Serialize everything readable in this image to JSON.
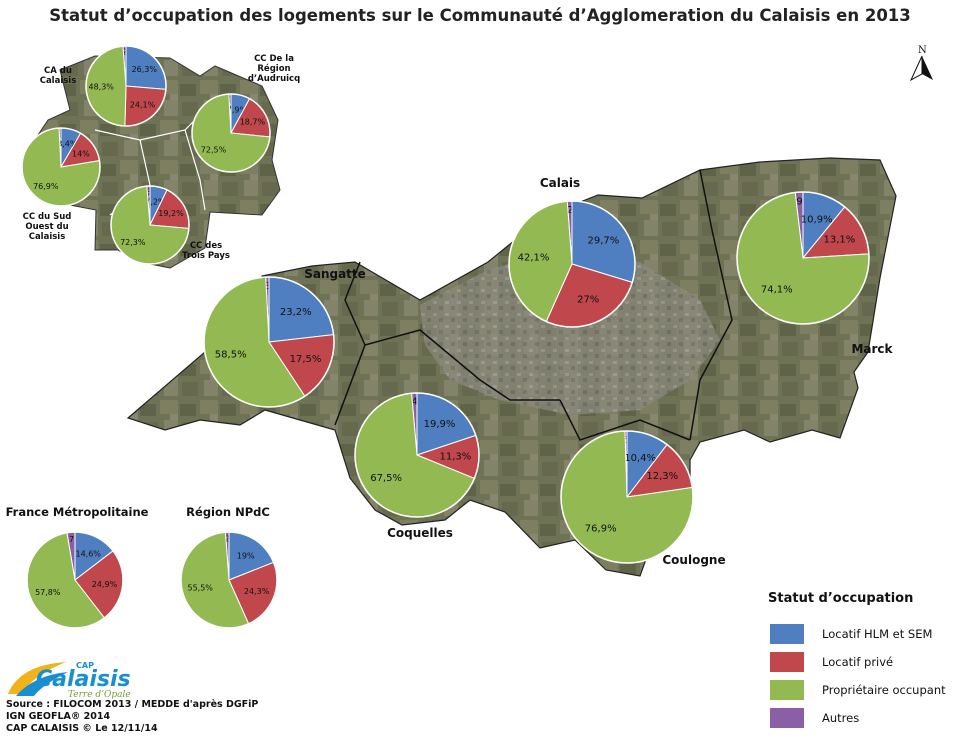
{
  "title": "Statut d’occupation des logements sur le Communauté d’Agglomeration du Calaisis en 2013",
  "colors": {
    "hlm": "#4f7fc0",
    "prive": "#c0474b",
    "proprietaire": "#93ba52",
    "autres": "#8b5fa6"
  },
  "legend": {
    "title": "Statut d’occupation",
    "items": [
      {
        "key": "hlm",
        "label": "Locatif HLM et SEM"
      },
      {
        "key": "prive",
        "label": "Locatif privé"
      },
      {
        "key": "proprietaire",
        "label": "Propriétaire occupant"
      },
      {
        "key": "autres",
        "label": "Autres"
      }
    ]
  },
  "north_label": "N",
  "logo": {
    "text": "Calaisis",
    "prefix": "CAP",
    "tagline": "Terre d’Opale"
  },
  "source_lines": [
    "Source : FILOCOM 2013 / MEDDE d'après DGFiP",
    "IGN GEOFLA® 2014",
    "CAP CALAISIS © Le 12/11/14"
  ],
  "chart_data": [
    {
      "type": "pie",
      "id": "calais",
      "name": "Calais",
      "slices": [
        {
          "key": "hlm",
          "value": 29.7,
          "label": "29,7%"
        },
        {
          "key": "prive",
          "value": 27.0,
          "label": "27%"
        },
        {
          "key": "proprietaire",
          "value": 42.1,
          "label": "42,1%"
        },
        {
          "key": "autres",
          "value": 1.2,
          "label": "1,2%"
        }
      ]
    },
    {
      "type": "pie",
      "id": "marck",
      "name": "Marck",
      "slices": [
        {
          "key": "hlm",
          "value": 10.9,
          "label": "10,9%"
        },
        {
          "key": "prive",
          "value": 13.1,
          "label": "13,1%"
        },
        {
          "key": "proprietaire",
          "value": 74.1,
          "label": "74,1%"
        },
        {
          "key": "autres",
          "value": 1.9,
          "label": "1,9%"
        }
      ]
    },
    {
      "type": "pie",
      "id": "sangatte",
      "name": "Sangatte",
      "slices": [
        {
          "key": "hlm",
          "value": 23.2,
          "label": "23,2%"
        },
        {
          "key": "prive",
          "value": 17.5,
          "label": "17,5%"
        },
        {
          "key": "proprietaire",
          "value": 58.5,
          "label": "58,5%"
        },
        {
          "key": "autres",
          "value": 0.8,
          "label": "0,8%"
        }
      ]
    },
    {
      "type": "pie",
      "id": "coquelles",
      "name": "Coquelles",
      "slices": [
        {
          "key": "hlm",
          "value": 19.9,
          "label": "19,9%"
        },
        {
          "key": "prive",
          "value": 11.3,
          "label": "11,3%"
        },
        {
          "key": "proprietaire",
          "value": 67.5,
          "label": "67,5%"
        },
        {
          "key": "autres",
          "value": 1.4,
          "label": "1,4%"
        }
      ]
    },
    {
      "type": "pie",
      "id": "coulogne",
      "name": "Coulogne",
      "slices": [
        {
          "key": "hlm",
          "value": 10.4,
          "label": "10,4%"
        },
        {
          "key": "prive",
          "value": 12.3,
          "label": "12,3%"
        },
        {
          "key": "proprietaire",
          "value": 76.9,
          "label": "76,9%"
        },
        {
          "key": "autres",
          "value": 0.5,
          "label": "0,5%"
        }
      ]
    },
    {
      "type": "pie",
      "id": "ca-calaisis",
      "name": "CA du Calaisis",
      "slices": [
        {
          "key": "hlm",
          "value": 26.3,
          "label": "26,3%"
        },
        {
          "key": "prive",
          "value": 24.1,
          "label": "24,1%"
        },
        {
          "key": "proprietaire",
          "value": 48.3,
          "label": "48,3%"
        },
        {
          "key": "autres",
          "value": 1.2,
          "label": "1,2%"
        }
      ]
    },
    {
      "type": "pie",
      "id": "cc-audruicq",
      "name": "CC De la Région d’Audruicq",
      "slices": [
        {
          "key": "hlm",
          "value": 7.9,
          "label": "7,9%"
        },
        {
          "key": "prive",
          "value": 18.7,
          "label": "18,7%"
        },
        {
          "key": "proprietaire",
          "value": 72.5,
          "label": "72,5%"
        },
        {
          "key": "autres",
          "value": 0.9,
          "label": "0,9%"
        }
      ]
    },
    {
      "type": "pie",
      "id": "cc-sud-ouest",
      "name": "CC du Sud Ouest du Calaisis",
      "slices": [
        {
          "key": "hlm",
          "value": 8.4,
          "label": "8,4%"
        },
        {
          "key": "prive",
          "value": 14.0,
          "label": "14%"
        },
        {
          "key": "proprietaire",
          "value": 76.9,
          "label": "76,9%"
        },
        {
          "key": "autres",
          "value": 0.8,
          "label": "0,8%"
        }
      ]
    },
    {
      "type": "pie",
      "id": "cc-trois-pays",
      "name": "CC des Trois Pays",
      "slices": [
        {
          "key": "hlm",
          "value": 7.2,
          "label": "7,2%"
        },
        {
          "key": "prive",
          "value": 19.2,
          "label": "19,2%"
        },
        {
          "key": "proprietaire",
          "value": 72.3,
          "label": "72,3%"
        },
        {
          "key": "autres",
          "value": 1.3,
          "label": "1,3%"
        }
      ]
    },
    {
      "type": "pie",
      "id": "france",
      "name": "France Métropolitaine",
      "slices": [
        {
          "key": "hlm",
          "value": 14.6,
          "label": "14,6%"
        },
        {
          "key": "prive",
          "value": 24.9,
          "label": "24,9%"
        },
        {
          "key": "proprietaire",
          "value": 57.8,
          "label": "57,8%"
        },
        {
          "key": "autres",
          "value": 2.7,
          "label": "2,7%"
        }
      ]
    },
    {
      "type": "pie",
      "id": "npdc",
      "name": "Région NPdC",
      "slices": [
        {
          "key": "hlm",
          "value": 19.0,
          "label": "19%"
        },
        {
          "key": "prive",
          "value": 24.3,
          "label": "24,3%"
        },
        {
          "key": "proprietaire",
          "value": 55.5,
          "label": "55,5%"
        },
        {
          "key": "autres",
          "value": 1.2,
          "label": "1,2%"
        }
      ]
    }
  ]
}
